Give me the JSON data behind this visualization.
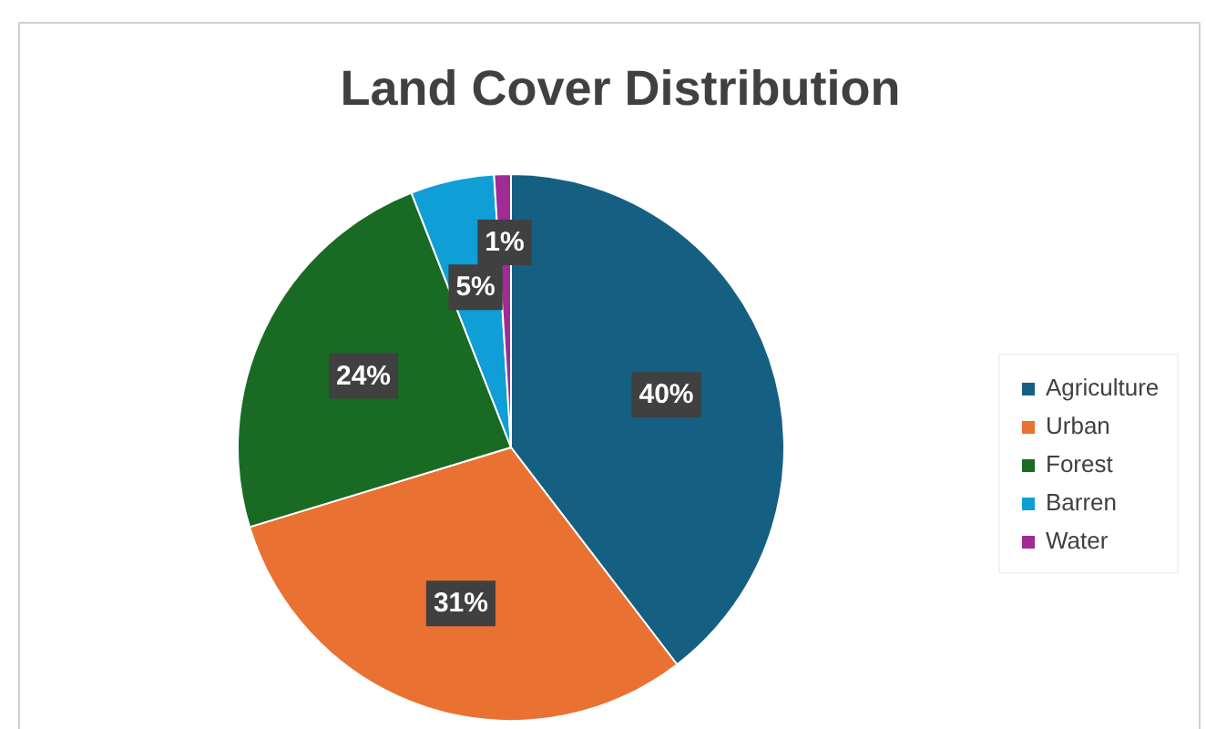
{
  "chart_data": {
    "type": "pie",
    "title": "Land Cover Distribution",
    "categories": [
      "Agriculture",
      "Urban",
      "Forest",
      "Barren",
      "Water"
    ],
    "values": [
      40,
      31,
      24,
      5,
      1
    ],
    "colors": [
      "#156082",
      "#e97132",
      "#196b24",
      "#0f9ed5",
      "#a02b93"
    ],
    "value_labels": [
      "40%",
      "31%",
      "24%",
      "5%",
      "1%"
    ],
    "legend": "right"
  }
}
